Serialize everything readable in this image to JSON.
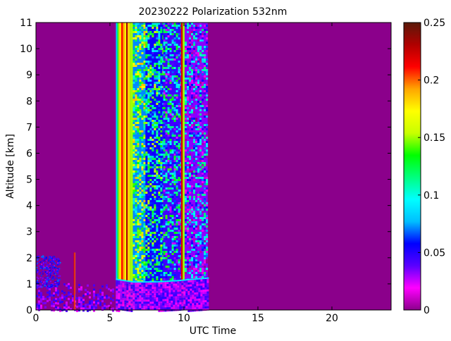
{
  "chart_data": {
    "type": "heatmap",
    "title": "20230222 Polarization 532nm",
    "xlabel": "UTC Time",
    "ylabel": "Altitude [km]",
    "xlim": [
      0,
      24
    ],
    "ylim": [
      0,
      11
    ],
    "x_ticks": [
      0,
      5,
      10,
      15,
      20
    ],
    "x_tick_labels": [
      "0",
      "5",
      "10",
      "15",
      "20"
    ],
    "y_ticks": [
      0,
      1,
      2,
      3,
      4,
      5,
      6,
      7,
      8,
      9,
      10,
      11
    ],
    "y_tick_labels": [
      "0",
      "1",
      "2",
      "3",
      "4",
      "5",
      "6",
      "7",
      "8",
      "9",
      "10",
      "11"
    ],
    "colorbar": {
      "range": [
        0,
        0.25
      ],
      "ticks": [
        0,
        0.05,
        0.1,
        0.15,
        0.2,
        0.25
      ],
      "tick_labels": [
        "0",
        "0.05",
        "0.1",
        "0.15",
        "0.2",
        "0.25"
      ],
      "colormap": [
        "#8b008b",
        "#ff00ff",
        "#5a00ff",
        "#0000ff",
        "#00bfff",
        "#00ffff",
        "#00ff7f",
        "#00ff00",
        "#c8ff00",
        "#ffff00",
        "#ffa500",
        "#ff0000",
        "#b00000",
        "#5a1a0a"
      ]
    },
    "background_value": 0,
    "observation_window_utc": [
      5.4,
      11.6
    ],
    "profile_bands": [
      {
        "t0": 5.4,
        "t1": 5.5,
        "value": 0.08
      },
      {
        "t0": 5.5,
        "t1": 5.58,
        "value": 0.13
      },
      {
        "t0": 5.58,
        "t1": 5.66,
        "value": 0.16
      },
      {
        "t0": 5.66,
        "t1": 5.76,
        "value": 0.18
      },
      {
        "t0": 5.76,
        "t1": 5.88,
        "value": 0.21
      },
      {
        "t0": 5.88,
        "t1": 6.0,
        "value": 0.19
      },
      {
        "t0": 6.0,
        "t1": 6.1,
        "value": 0.17
      },
      {
        "t0": 6.1,
        "t1": 6.2,
        "value": 0.23
      },
      {
        "t0": 6.2,
        "t1": 6.35,
        "value": 0.18
      },
      {
        "t0": 6.35,
        "t1": 6.55,
        "value": 0.15
      },
      {
        "t0": 6.55,
        "t1": 7.4,
        "value": 0.13
      },
      {
        "t0": 7.4,
        "t1": 8.6,
        "value": 0.1
      },
      {
        "t0": 8.6,
        "t1": 9.8,
        "value": 0.08
      },
      {
        "t0": 9.8,
        "t1": 9.92,
        "value": 0.22
      },
      {
        "t0": 9.92,
        "t1": 10.05,
        "value": 0.15
      },
      {
        "t0": 10.05,
        "t1": 11.6,
        "value": 0.06
      }
    ],
    "boundary_layer_top_km": [
      {
        "t": 5.4,
        "km": 1.2
      },
      {
        "t": 6.5,
        "km": 1.1
      },
      {
        "t": 8.0,
        "km": 1.1
      },
      {
        "t": 9.5,
        "km": 1.15
      },
      {
        "t": 10.5,
        "km": 1.2
      },
      {
        "t": 11.6,
        "km": 1.25
      }
    ],
    "low_aerosol_layer": {
      "t0": 0,
      "t1": 5.2,
      "top_km": 0.9,
      "value": 0.02
    },
    "vertical_streaks": [
      {
        "t": 2.55,
        "value": 0.22
      },
      {
        "t": 2.6,
        "value": 0.2
      }
    ]
  }
}
